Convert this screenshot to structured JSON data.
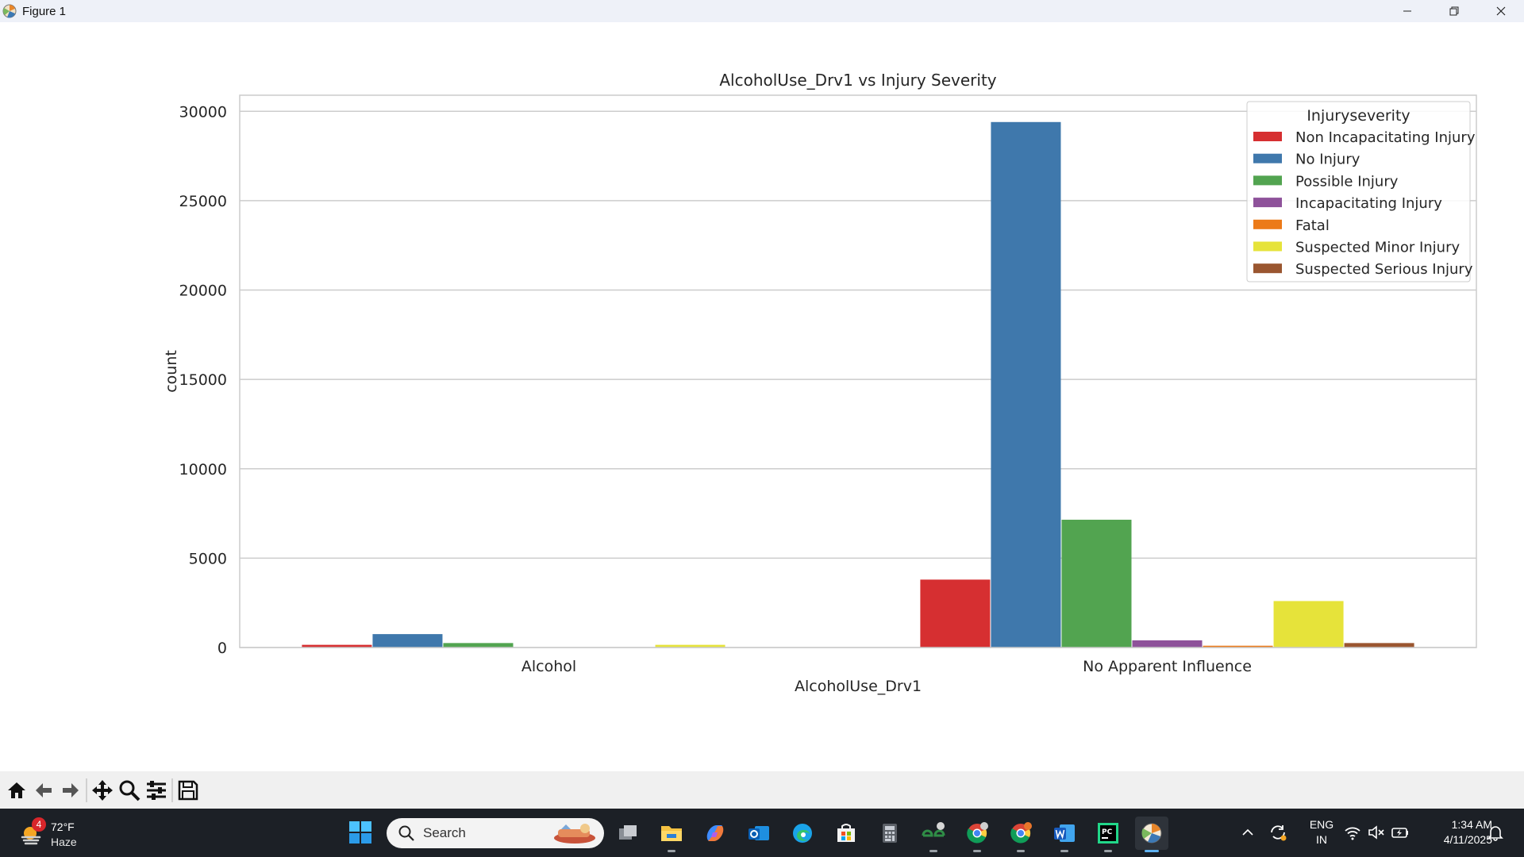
{
  "window": {
    "title": "Figure 1",
    "controls": [
      "minimize",
      "maximize",
      "close"
    ]
  },
  "toolbar": {
    "buttons": [
      {
        "name": "home",
        "icon": "home-icon"
      },
      {
        "name": "back",
        "icon": "arrow-left-icon"
      },
      {
        "name": "forward",
        "icon": "arrow-right-icon"
      },
      {
        "name": "pan",
        "icon": "move-icon"
      },
      {
        "name": "zoom",
        "icon": "magnifier-icon"
      },
      {
        "name": "configure",
        "icon": "sliders-icon"
      },
      {
        "name": "save",
        "icon": "floppy-disk-icon"
      }
    ]
  },
  "chart_data": {
    "type": "bar",
    "title": "AlcoholUse_Drv1 vs Injury Severity",
    "xlabel": "AlcoholUse_Drv1",
    "ylabel": "count",
    "categories": [
      "Alcohol",
      "No Apparent Influence"
    ],
    "ylim": [
      0,
      30900
    ],
    "yticks": [
      0,
      5000,
      10000,
      15000,
      20000,
      25000,
      30000
    ],
    "grid": true,
    "legend": {
      "title": "Injuryseverity",
      "placement": "top-right"
    },
    "series": [
      {
        "name": "Non Incapacitating Injury",
        "color": "#d62f31",
        "values": [
          150,
          3800
        ]
      },
      {
        "name": "No Injury",
        "color": "#3f78ac",
        "values": [
          750,
          29400
        ]
      },
      {
        "name": "Possible Injury",
        "color": "#52a450",
        "values": [
          250,
          7150
        ]
      },
      {
        "name": "Incapacitating Injury",
        "color": "#8e529a",
        "values": [
          20,
          400
        ]
      },
      {
        "name": "Fatal",
        "color": "#ec7a18",
        "values": [
          5,
          100
        ]
      },
      {
        "name": "Suspected Minor Injury",
        "color": "#e6e33a",
        "values": [
          150,
          2600
        ]
      },
      {
        "name": "Suspected Serious Injury",
        "color": "#9a5630",
        "values": [
          10,
          250
        ]
      }
    ]
  },
  "taskbar": {
    "weather": {
      "temp": "72°F",
      "condition": "Haze",
      "badge": "4"
    },
    "search_placeholder": "Search",
    "apps": [
      {
        "name": "task-view",
        "icon": "task-view-icon"
      },
      {
        "name": "file-explorer",
        "icon": "folder-icon"
      },
      {
        "name": "copilot",
        "icon": "copilot-icon"
      },
      {
        "name": "outlook",
        "icon": "outlook-icon"
      },
      {
        "name": "edge",
        "icon": "edge-icon"
      },
      {
        "name": "store",
        "icon": "store-icon"
      },
      {
        "name": "calculator",
        "icon": "calculator-icon"
      },
      {
        "name": "geeksforgeeks",
        "icon": "gfg-icon"
      },
      {
        "name": "chrome-1",
        "icon": "chrome-icon"
      },
      {
        "name": "chrome-2",
        "icon": "chrome-icon"
      },
      {
        "name": "word",
        "icon": "word-icon"
      },
      {
        "name": "pycharm",
        "icon": "pycharm-icon"
      },
      {
        "name": "matplotlib-figure",
        "icon": "matplotlib-icon"
      }
    ],
    "language": {
      "line1": "ENG",
      "line2": "IN"
    },
    "clock": {
      "time": "1:34 AM",
      "date": "4/11/2025"
    }
  }
}
